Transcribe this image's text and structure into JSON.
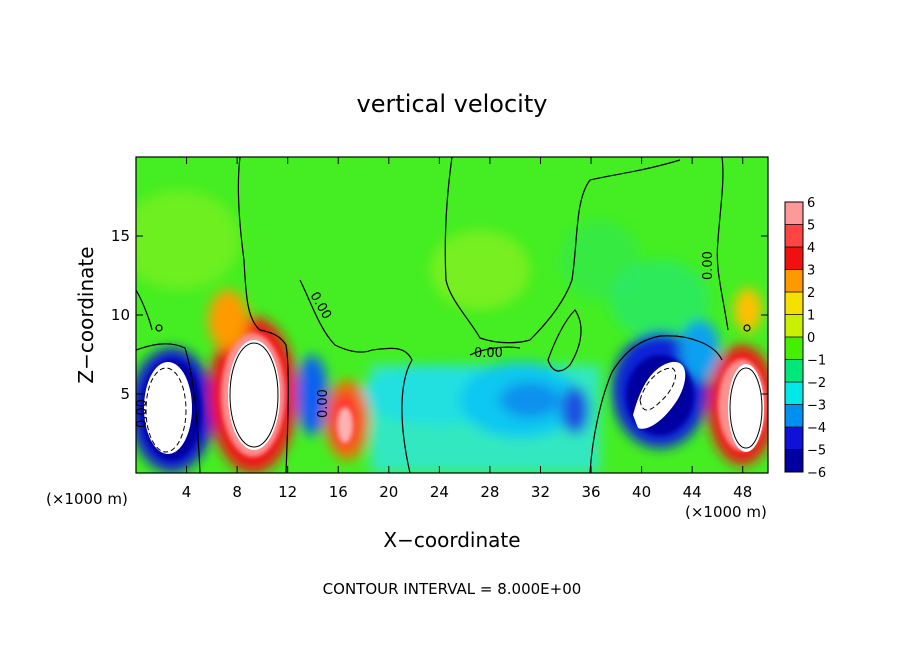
{
  "chart_data": {
    "type": "heatmap",
    "title": "vertical velocity",
    "xlabel": "X−coordinate",
    "ylabel": "Z−coordinate",
    "x_units_left": "(×1000 m)",
    "x_units_right": "(×1000 m)",
    "footer": "CONTOUR INTERVAL = 8.000E+00",
    "xlim": [
      0,
      50
    ],
    "ylim": [
      0,
      20
    ],
    "x_ticks": [
      4,
      8,
      12,
      16,
      20,
      24,
      28,
      32,
      36,
      40,
      44,
      48
    ],
    "y_ticks": [
      5,
      10,
      15
    ],
    "colorbar": {
      "min": -6,
      "max": 6,
      "labels": [
        "6",
        "5",
        "4",
        "3",
        "2",
        "1",
        "0",
        "−1",
        "−2",
        "−3",
        "−4",
        "−5",
        "−6"
      ],
      "colors": [
        "#ff9898",
        "#ff4444",
        "#f01010",
        "#ff9900",
        "#f6e000",
        "#c8f000",
        "#44f000",
        "#00e87a",
        "#00e8e8",
        "#0090f0",
        "#1010d8",
        "#0000a0"
      ]
    },
    "contour_labels": [
      "0.00",
      "0.00",
      "0.00",
      "0.00",
      "0.00"
    ],
    "features": [
      {
        "kind": "downdraft",
        "x": 3,
        "z": 4,
        "min": -6
      },
      {
        "kind": "updraft",
        "x": 9.5,
        "z": 5,
        "max": 6
      },
      {
        "kind": "downdraft",
        "x": 13.5,
        "z": 5,
        "min": -4
      },
      {
        "kind": "updraft",
        "x": 16.5,
        "z": 4,
        "max": 5
      },
      {
        "kind": "downdraft",
        "x": 30,
        "z": 4.5,
        "min": -3
      },
      {
        "kind": "downdraft",
        "x": 34.5,
        "z": 4,
        "min": -4
      },
      {
        "kind": "downdraft",
        "x": 41,
        "z": 4.5,
        "min": -6
      },
      {
        "kind": "updraft",
        "x": 47,
        "z": 4.5,
        "max": 6
      }
    ]
  }
}
